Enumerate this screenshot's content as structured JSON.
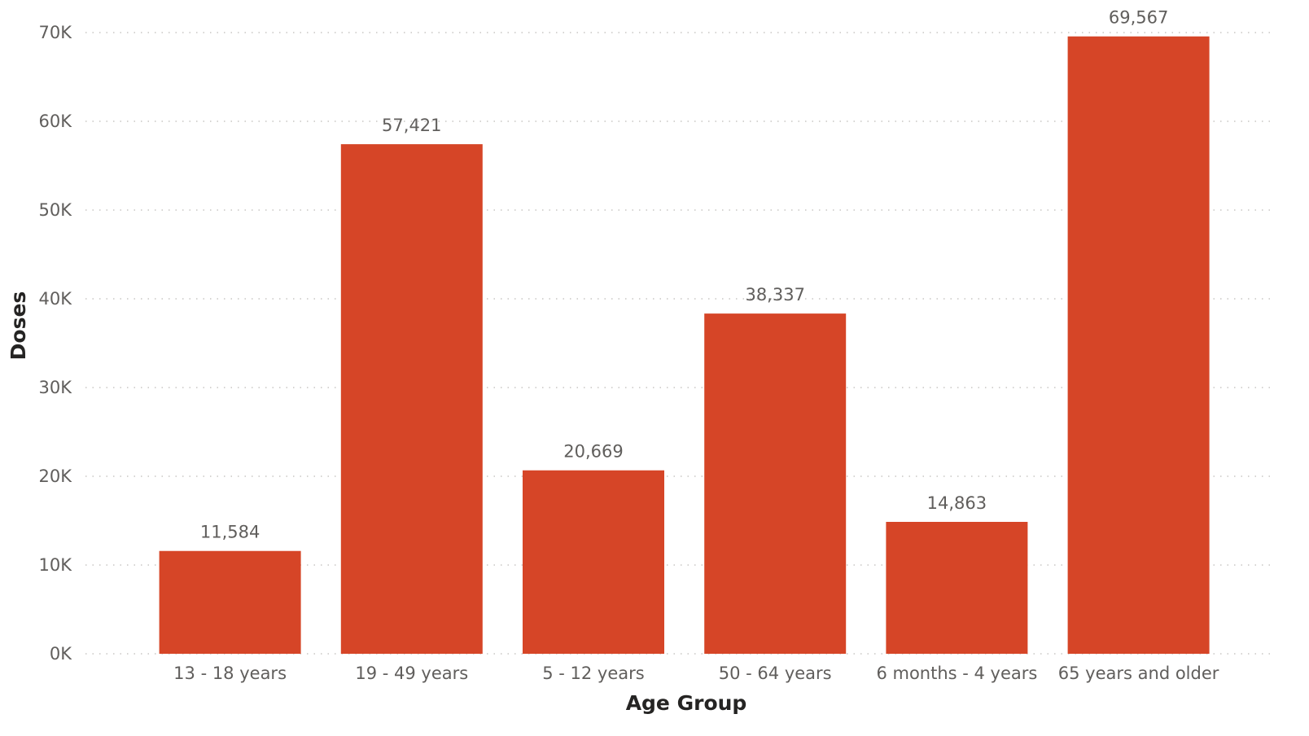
{
  "chart_data": {
    "type": "bar",
    "title": "",
    "xlabel": "Age Group",
    "ylabel": "Doses",
    "categories": [
      "13 - 18 years",
      "19 - 49 years",
      "5 - 12 years",
      "50 - 64 years",
      "6 months - 4 years",
      "65 years and older"
    ],
    "values": [
      11584,
      57421,
      20669,
      38337,
      14863,
      69567
    ],
    "data_labels": [
      "11,584",
      "57,421",
      "20,669",
      "38,337",
      "14,863",
      "69,567"
    ],
    "ylim": [
      0,
      70000
    ],
    "y_ticks": [
      0,
      10000,
      20000,
      30000,
      40000,
      50000,
      60000,
      70000
    ],
    "y_tick_labels": [
      "0K",
      "10K",
      "20K",
      "30K",
      "40K",
      "50K",
      "60K",
      "70K"
    ],
    "grid": true,
    "legend": "none",
    "bar_color": "#d64527"
  }
}
